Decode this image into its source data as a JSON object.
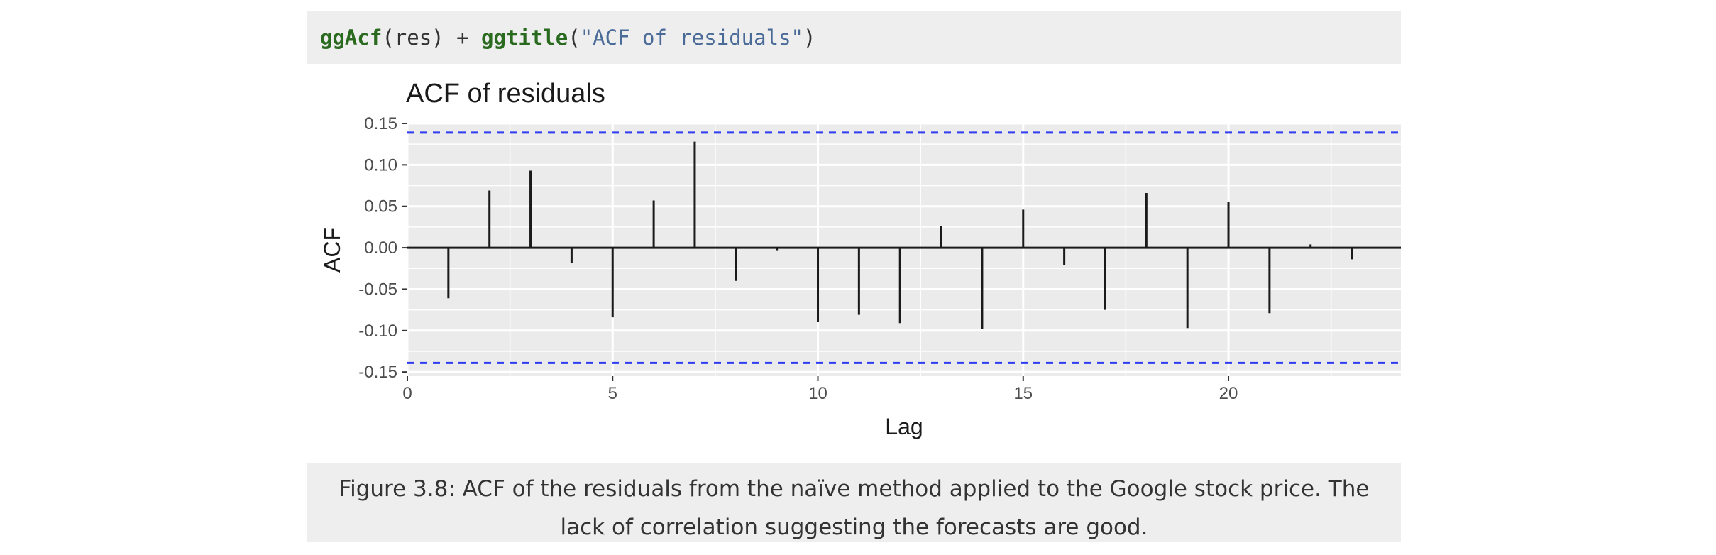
{
  "code": {
    "fn1": "ggAcf",
    "arg_open": "(res) + ",
    "fn2": "ggtitle",
    "paren_open": "(",
    "title_string": "\"ACF of residuals\"",
    "paren_close": ")"
  },
  "chart_data": {
    "type": "bar",
    "title": "ACF of residuals",
    "xlabel": "Lag",
    "ylabel": "ACF",
    "x": [
      1,
      2,
      3,
      4,
      5,
      6,
      7,
      8,
      9,
      10,
      11,
      12,
      13,
      14,
      15,
      16,
      17,
      18,
      19,
      20,
      21,
      22,
      23
    ],
    "values": [
      -0.061,
      0.069,
      0.093,
      -0.018,
      -0.084,
      0.057,
      0.128,
      -0.04,
      -0.003,
      -0.089,
      -0.081,
      -0.091,
      0.026,
      -0.098,
      0.046,
      -0.021,
      -0.075,
      0.066,
      -0.097,
      0.055,
      -0.079,
      0.004,
      -0.014
    ],
    "confidence_bound": 0.139,
    "xlim": [
      0,
      24.2
    ],
    "ylim": [
      -0.155,
      0.15
    ],
    "x_ticks": [
      0,
      5,
      10,
      15,
      20
    ],
    "y_ticks": [
      -0.15,
      -0.1,
      -0.05,
      0.0,
      0.05,
      0.1,
      0.15
    ],
    "x_tick_labels": [
      "0",
      "5",
      "10",
      "15",
      "20"
    ],
    "y_tick_labels": [
      "-0.15",
      "-0.10",
      "-0.05",
      "0.00",
      "0.05",
      "0.10",
      "0.15"
    ],
    "grid": true,
    "colors": {
      "panel": "#ebebeb",
      "grid": "#ffffff",
      "bar": "#1a1a1a",
      "bound": "#2f3cf0",
      "text": "#4d4d4d",
      "title": "#1a1a1a"
    }
  },
  "caption": {
    "text": "Figure 3.8: ACF of the residuals from the naïve method applied to the Google stock price. The lack of correlation suggesting the forecasts are good."
  }
}
